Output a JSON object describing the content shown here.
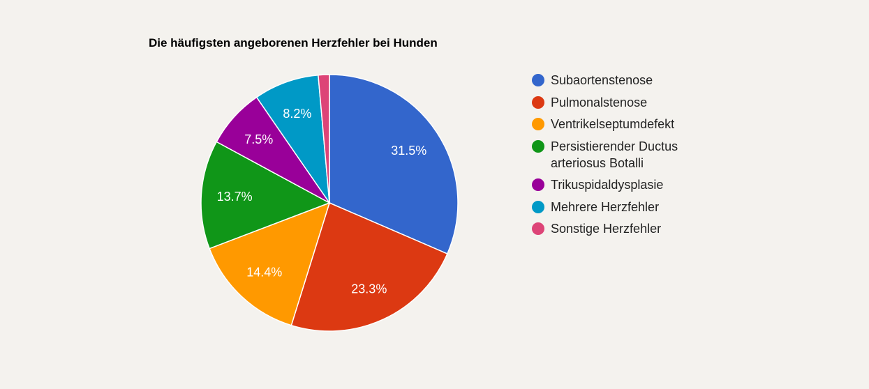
{
  "chart_data": {
    "type": "pie",
    "title": "Die häufigsten angeborenen Herzfehler bei Hunden",
    "legend_position": "right",
    "slices": [
      {
        "label": "Subaortenstenose",
        "value": 31.5,
        "text": "31.5%",
        "color": "#3366cc"
      },
      {
        "label": "Pulmonalstenose",
        "value": 23.3,
        "text": "23.3%",
        "color": "#dc3912"
      },
      {
        "label": "Ventrikelseptumdefekt",
        "value": 14.4,
        "text": "14.4%",
        "color": "#ff9900"
      },
      {
        "label": "Persistierender Ductus arteriosus Botalli",
        "value": 13.7,
        "text": "13.7%",
        "color": "#109618"
      },
      {
        "label": "Trikuspidaldysplasie",
        "value": 7.5,
        "text": "7.5%",
        "color": "#990099"
      },
      {
        "label": "Mehrere Herzfehler",
        "value": 8.2,
        "text": "8.2%",
        "color": "#0099c6"
      },
      {
        "label": "Sonstige Herzfehler",
        "value": 1.4,
        "text": "",
        "color": "#dd4477"
      }
    ]
  }
}
